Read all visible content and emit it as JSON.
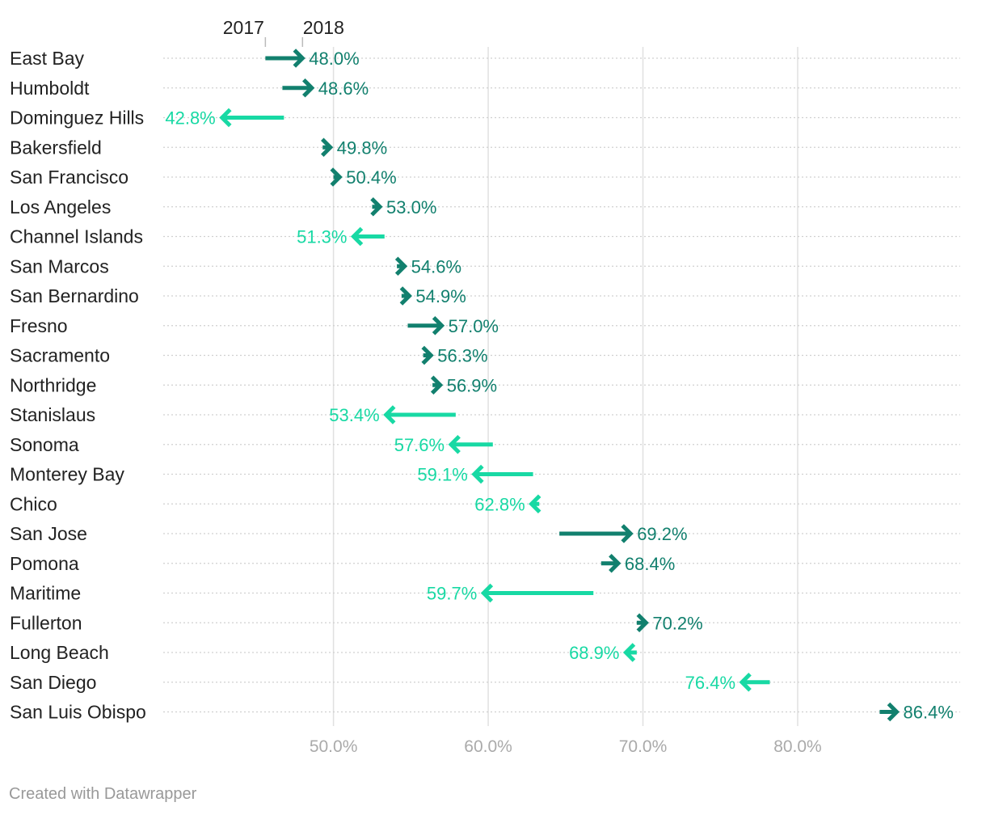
{
  "colors": {
    "increase": "#12806e",
    "decrease": "#18d9a4",
    "grid": "#e0e0e0",
    "dotted": "#d0d0d0",
    "tick_text": "#aaaaaa",
    "text": "#222222"
  },
  "chart_data": {
    "type": "arrow",
    "title": "",
    "xlabel": "",
    "ylabel": "",
    "xlim": [
      39,
      90.5
    ],
    "legend": {
      "start": "2017",
      "end": "2018"
    },
    "x_ticks": [
      {
        "value": 50,
        "label": "50.0%"
      },
      {
        "value": 60,
        "label": "60.0%"
      },
      {
        "value": 70,
        "label": "70.0%"
      },
      {
        "value": 80,
        "label": "80.0%"
      }
    ],
    "categories": [
      "East Bay",
      "Humboldt",
      "Dominguez Hills",
      "Bakersfield",
      "San Francisco",
      "Los Angeles",
      "Channel Islands",
      "San Marcos",
      "San Bernardino",
      "Fresno",
      "Sacramento",
      "Northridge",
      "Stanislaus",
      "Sonoma",
      "Monterey Bay",
      "Chico",
      "San Jose",
      "Pomona",
      "Maritime",
      "Fullerton",
      "Long Beach",
      "San Diego",
      "San Luis Obispo"
    ],
    "series": [
      {
        "name": "2017",
        "values": [
          45.6,
          46.7,
          46.8,
          49.3,
          50.0,
          52.5,
          53.3,
          54.1,
          54.4,
          54.8,
          55.8,
          56.4,
          57.9,
          60.3,
          62.9,
          63.3,
          64.6,
          67.3,
          66.8,
          69.6,
          69.6,
          78.2,
          85.3
        ]
      },
      {
        "name": "2018",
        "values": [
          48.0,
          48.6,
          42.8,
          49.8,
          50.4,
          53.0,
          51.3,
          54.6,
          54.9,
          57.0,
          56.3,
          56.9,
          53.4,
          57.6,
          59.1,
          62.8,
          69.2,
          68.4,
          59.7,
          70.2,
          68.9,
          76.4,
          86.4
        ]
      }
    ],
    "value_labels": [
      "48.0%",
      "48.6%",
      "42.8%",
      "49.8%",
      "50.4%",
      "53.0%",
      "51.3%",
      "54.6%",
      "54.9%",
      "57.0%",
      "56.3%",
      "56.9%",
      "53.4%",
      "57.6%",
      "59.1%",
      "62.8%",
      "69.2%",
      "68.4%",
      "59.7%",
      "70.2%",
      "68.9%",
      "76.4%",
      "86.4%"
    ]
  },
  "footer": {
    "credit": "Created with Datawrapper"
  }
}
